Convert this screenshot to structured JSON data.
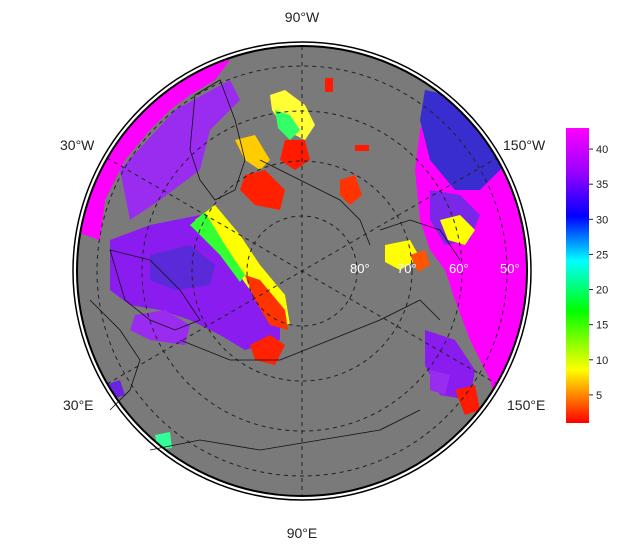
{
  "map": {
    "projection": "north-polar-stereographic",
    "background_color": "#7a7a7a",
    "longitude_labels": {
      "top": "90°W",
      "bottom": "90°E",
      "upper_left": "30°W",
      "lower_left": "30°E",
      "upper_right": "150°W",
      "lower_right": "150°E"
    },
    "latitude_labels": [
      "80°",
      "70°",
      "60°",
      "50°"
    ],
    "graticule": {
      "style": "dashed",
      "color": "#222222"
    }
  },
  "colorbar": {
    "ticks": [
      "40",
      "35",
      "30",
      "25",
      "20",
      "15",
      "10",
      "5"
    ],
    "range": [
      1,
      43
    ],
    "scale": [
      "#ff0000",
      "#ffff00",
      "#00ff00",
      "#00ffff",
      "#0000ff",
      "#9900ff",
      "#ff00ff"
    ]
  },
  "palette": {
    "max": "#ff00ff",
    "high": "#8a1cf0",
    "mid_high": "#3a2dd0",
    "mid": "#00b4ff",
    "mid_low": "#33ff33",
    "low": "#ffff00",
    "min": "#ff1a00",
    "land": "#7a7a7a"
  }
}
